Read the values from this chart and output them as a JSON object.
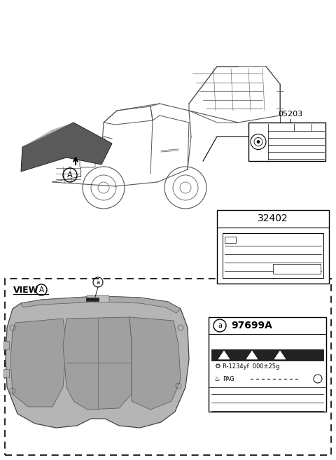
{
  "bg_color": "#ffffff",
  "label_05203": "05203",
  "label_32402": "32402",
  "label_97699A": "97699A",
  "view_label": "VIEW",
  "label_r1234yf": "R-1234yf  000±25g",
  "label_pag": "PAG",
  "line_color": "#555555",
  "dark_color": "#333333",
  "hood_fill": "#707070",
  "hood_grad_dark": "#404040",
  "panel_fill": "#909090",
  "panel_dark": "#707070"
}
